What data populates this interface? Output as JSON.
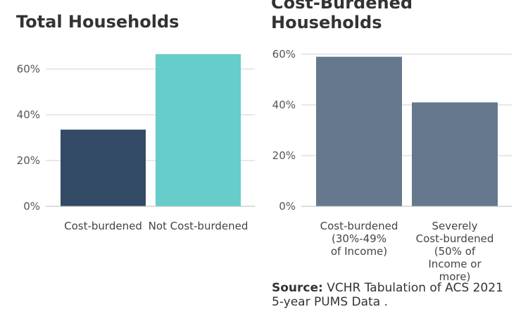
{
  "chart_data": [
    {
      "type": "bar",
      "title": "Total Households",
      "categories": [
        "Cost-burdened",
        "Not Cost-burdened"
      ],
      "values": [
        33.5,
        66.5
      ],
      "ylim": [
        0,
        70
      ],
      "yticks": [
        "0%",
        "20%",
        "40%",
        "60%"
      ],
      "colors": [
        "#324a66",
        "#66cdcb"
      ],
      "grid": true
    },
    {
      "type": "bar",
      "title": "Cost-Burdened Households",
      "categories": [
        "Cost-burdened (30%-49% of Income)",
        "Severely Cost-burdened (50% of Income or more)"
      ],
      "category_lines": [
        [
          "Cost-burdened",
          "(30%-49%",
          "of Income)"
        ],
        [
          "Severely",
          "Cost-burdened",
          "(50% of",
          "Income or",
          "more)"
        ]
      ],
      "values": [
        59,
        41
      ],
      "ylim": [
        0,
        60
      ],
      "yticks": [
        "0%",
        "20%",
        "40%",
        "60%"
      ],
      "colors": [
        "#66788e",
        "#66788e"
      ],
      "grid": true
    }
  ],
  "source": {
    "label": "Source:",
    "text": " VCHR Tabulation of ACS 2021 5-year PUMS Data ."
  }
}
